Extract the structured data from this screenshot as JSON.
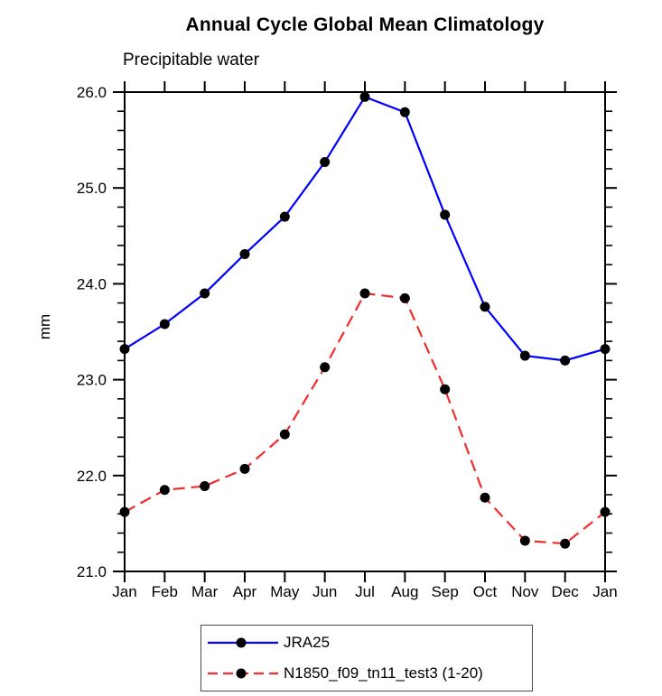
{
  "chart_data": {
    "type": "line",
    "title": "Annual Cycle Global Mean Climatology",
    "subtitle": "Precipitable water",
    "ylabel": "mm",
    "xlabel": "",
    "categories": [
      "Jan",
      "Feb",
      "Mar",
      "Apr",
      "May",
      "Jun",
      "Jul",
      "Aug",
      "Sep",
      "Oct",
      "Nov",
      "Dec",
      "Jan"
    ],
    "series": [
      {
        "name": "JRA25",
        "color": "#0000ff",
        "style": "solid",
        "marker": "circle",
        "marker_color": "#000000",
        "values": [
          23.32,
          23.58,
          23.9,
          24.31,
          24.7,
          25.27,
          25.95,
          25.79,
          24.72,
          23.76,
          23.25,
          23.2,
          23.32
        ]
      },
      {
        "name": "N1850_f09_tn11_test3 (1-20)",
        "color": "#f02d2d",
        "style": "dashed",
        "marker": "circle",
        "marker_color": "#000000",
        "values": [
          21.62,
          21.85,
          21.89,
          22.07,
          22.43,
          23.13,
          23.9,
          23.85,
          22.9,
          21.77,
          21.32,
          21.29,
          21.62
        ]
      }
    ],
    "ylim": [
      21.0,
      26.0
    ],
    "ytick_major": 1.0,
    "ytick_minor": 0.2,
    "ytick_labels": [
      "21.0",
      "22.0",
      "23.0",
      "24.0",
      "25.0",
      "26.0"
    ],
    "grid": false,
    "legend_position": "bottom-center"
  }
}
